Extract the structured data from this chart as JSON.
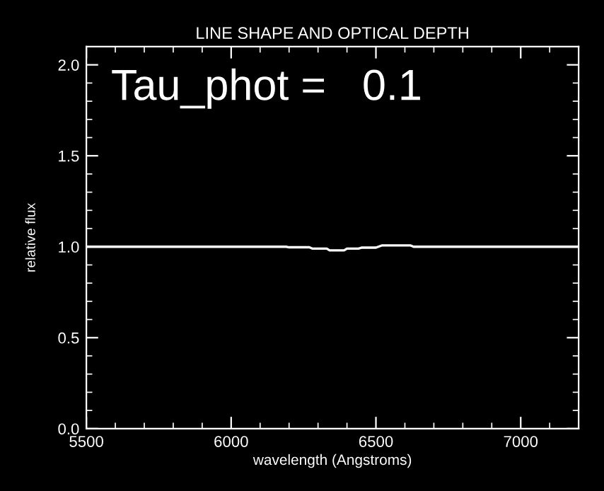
{
  "chart_data": {
    "type": "line",
    "title": "LINE SHAPE AND OPTICAL DEPTH",
    "xlabel": "wavelength (Angstroms)",
    "ylabel": "relative flux",
    "annotations": [
      "Tau_phot =   0.1"
    ],
    "series": [
      {
        "color": "#ffffff",
        "x": [
          5500,
          6190,
          6200,
          6270,
          6280,
          6330,
          6340,
          6390,
          6400,
          6440,
          6450,
          6500,
          6520,
          6620,
          6630,
          7200
        ],
        "values": [
          1.0,
          1.0,
          0.997,
          0.997,
          0.99,
          0.99,
          0.98,
          0.98,
          0.99,
          0.99,
          0.995,
          0.995,
          1.007,
          1.007,
          1.0,
          1.0
        ]
      }
    ],
    "xlim": [
      5500,
      7200
    ],
    "xticks": [
      5500,
      6000,
      6500,
      7000
    ],
    "ylim": [
      0.0,
      2.1
    ],
    "yticks": [
      {
        "value": 0.0,
        "label": "0.0"
      },
      {
        "value": 0.5,
        "label": "0.5"
      },
      {
        "value": 1.0,
        "label": "1.0"
      },
      {
        "value": 1.5,
        "label": "1.5"
      },
      {
        "value": 2.0,
        "label": "2.0"
      }
    ],
    "grid": false,
    "legend": false,
    "marker": "none",
    "line_style": "solid"
  }
}
